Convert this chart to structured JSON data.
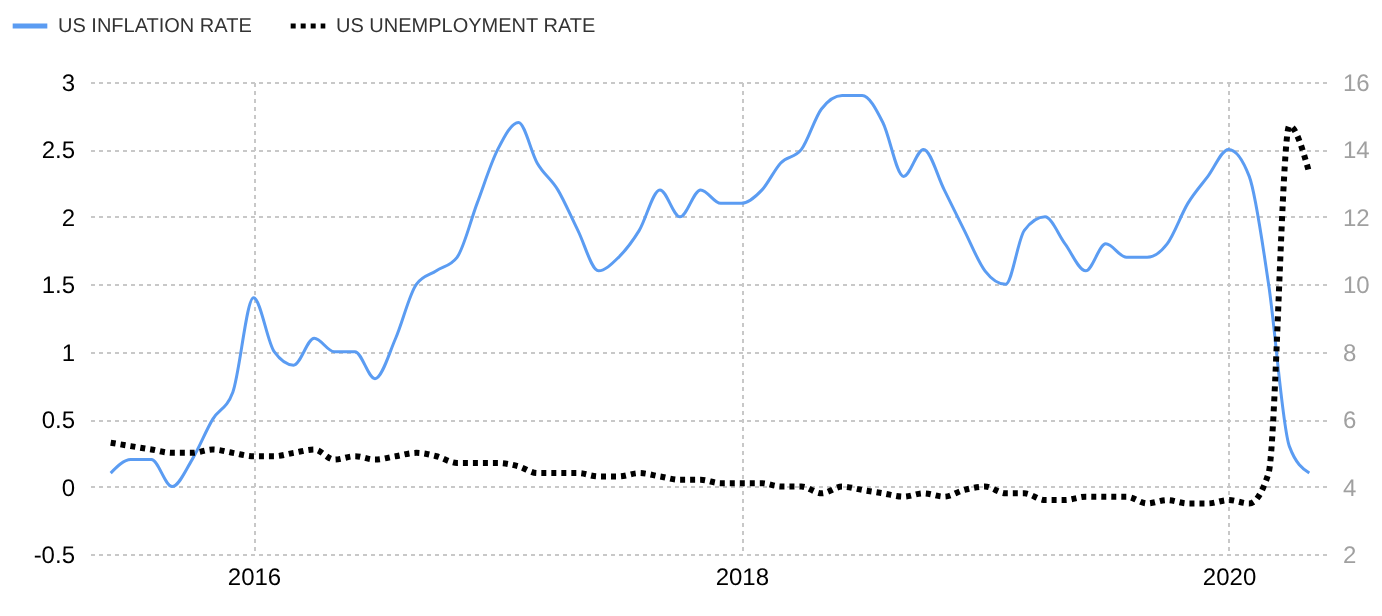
{
  "chart_data": {
    "type": "line",
    "x": [
      "2015-06",
      "2015-07",
      "2015-08",
      "2015-09",
      "2015-10",
      "2015-11",
      "2015-12",
      "2016-01",
      "2016-02",
      "2016-03",
      "2016-04",
      "2016-05",
      "2016-06",
      "2016-07",
      "2016-08",
      "2016-09",
      "2016-10",
      "2016-11",
      "2016-12",
      "2017-01",
      "2017-02",
      "2017-03",
      "2017-04",
      "2017-05",
      "2017-06",
      "2017-07",
      "2017-08",
      "2017-09",
      "2017-10",
      "2017-11",
      "2017-12",
      "2018-01",
      "2018-02",
      "2018-03",
      "2018-04",
      "2018-05",
      "2018-06",
      "2018-07",
      "2018-08",
      "2018-09",
      "2018-10",
      "2018-11",
      "2018-12",
      "2019-01",
      "2019-02",
      "2019-03",
      "2019-04",
      "2019-05",
      "2019-06",
      "2019-07",
      "2019-08",
      "2019-09",
      "2019-10",
      "2019-11",
      "2019-12",
      "2020-01",
      "2020-02",
      "2020-03",
      "2020-04",
      "2020-05"
    ],
    "series": [
      {
        "name": "US INFLATION RATE",
        "color": "#5b9cf2",
        "line_style": "solid",
        "values": [
          0.1,
          0.2,
          0.2,
          0.0,
          0.2,
          0.5,
          0.7,
          1.4,
          1.0,
          0.9,
          1.1,
          1.0,
          1.0,
          0.8,
          1.1,
          1.5,
          1.6,
          1.7,
          2.1,
          2.5,
          2.7,
          2.4,
          2.2,
          1.9,
          1.6,
          1.7,
          1.9,
          2.2,
          2.0,
          2.2,
          2.1,
          2.1,
          2.2,
          2.4,
          2.5,
          2.8,
          2.9,
          2.9,
          2.7,
          2.3,
          2.5,
          2.2,
          1.9,
          1.6,
          1.5,
          1.9,
          2.0,
          1.8,
          1.6,
          1.8,
          1.7,
          1.7,
          1.8,
          2.1,
          2.3,
          2.5,
          2.3,
          1.5,
          0.3,
          0.1
        ]
      },
      {
        "name": "US UNEMPLOYMENT RATE",
        "color": "#000000",
        "line_style": "dotted",
        "axis": "y2",
        "values": [
          5.3,
          5.2,
          5.1,
          5.0,
          5.0,
          5.1,
          5.0,
          4.9,
          4.9,
          5.0,
          5.1,
          4.8,
          4.9,
          4.8,
          4.9,
          5.0,
          4.9,
          4.7,
          4.7,
          4.7,
          4.6,
          4.4,
          4.4,
          4.4,
          4.3,
          4.3,
          4.4,
          4.3,
          4.2,
          4.2,
          4.1,
          4.1,
          4.1,
          4.0,
          4.0,
          3.8,
          4.0,
          3.9,
          3.8,
          3.7,
          3.8,
          3.7,
          3.9,
          4.0,
          3.8,
          3.8,
          3.6,
          3.6,
          3.7,
          3.7,
          3.7,
          3.5,
          3.6,
          3.5,
          3.5,
          3.6,
          3.5,
          4.4,
          14.7,
          13.3
        ]
      }
    ],
    "xlim": [
      "2015-05",
      "2020-06"
    ],
    "xticks": [
      "2016",
      "2018",
      "2020"
    ],
    "ylim": [
      -0.5,
      3
    ],
    "yticks": [
      -0.5,
      0,
      0.5,
      1,
      1.5,
      2,
      2.5,
      3
    ],
    "y2lim": [
      2,
      16
    ],
    "y2ticks": [
      2,
      4,
      6,
      8,
      10,
      12,
      14,
      16
    ],
    "grid": true,
    "legend": "top left"
  }
}
